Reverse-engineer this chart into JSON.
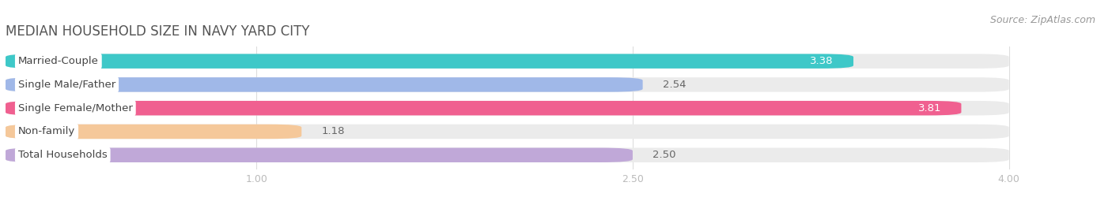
{
  "title": "MEDIAN HOUSEHOLD SIZE IN NAVY YARD CITY",
  "source": "Source: ZipAtlas.com",
  "categories": [
    "Married-Couple",
    "Single Male/Father",
    "Single Female/Mother",
    "Non-family",
    "Total Households"
  ],
  "values": [
    3.38,
    2.54,
    3.81,
    1.18,
    2.5
  ],
  "bar_colors": [
    "#3ec8c8",
    "#a0b8e8",
    "#f06090",
    "#f5c89a",
    "#c0a8d8"
  ],
  "value_inside": [
    true,
    false,
    true,
    false,
    false
  ],
  "xlim": [
    0,
    4.3
  ],
  "xmin": 0,
  "xmax": 4.0,
  "xticks": [
    1.0,
    2.5,
    4.0
  ],
  "background_color": "#ffffff",
  "bar_background_color": "#ebebeb",
  "title_fontsize": 12,
  "source_fontsize": 9,
  "label_fontsize": 9.5,
  "value_fontsize": 9.5,
  "tick_fontsize": 9,
  "bar_height": 0.62,
  "bar_gap": 0.38
}
